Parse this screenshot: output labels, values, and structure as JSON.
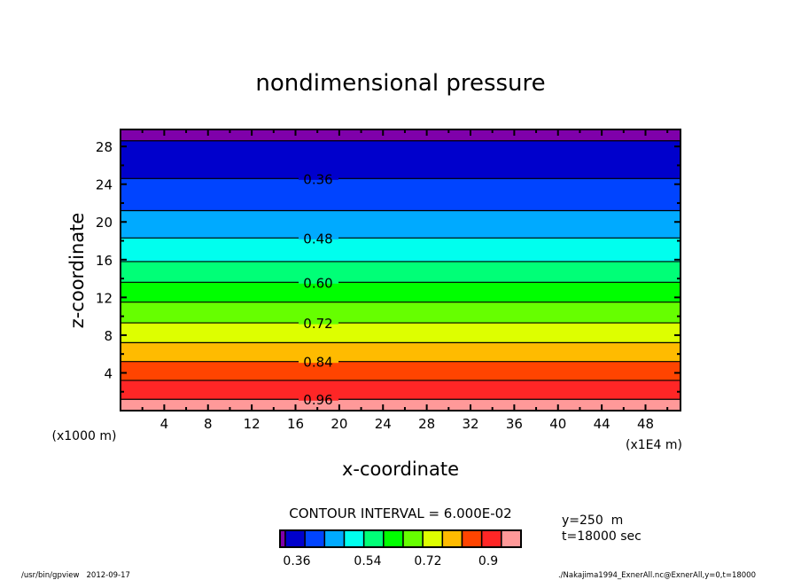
{
  "chart_data": {
    "type": "heatmap",
    "subtype": "filled-contour",
    "title": "nondimensional pressure",
    "xlabel": "x-coordinate",
    "ylabel": "z-coordinate",
    "x_unit_label": "(x1E4 m)",
    "y_unit_label": "(x1000 m)",
    "xlim": [
      0,
      51.2
    ],
    "ylim": [
      0,
      29.8
    ],
    "xticks": [
      "4",
      "8",
      "12",
      "16",
      "20",
      "24",
      "28",
      "32",
      "36",
      "40",
      "44",
      "48"
    ],
    "yticks": [
      "4",
      "8",
      "12",
      "16",
      "20",
      "24",
      "28"
    ],
    "bands": [
      {
        "z0": 0,
        "z1": 1.2,
        "color": "#ff9999"
      },
      {
        "z0": 1.2,
        "z1": 3.2,
        "color": "#ff2626"
      },
      {
        "z0": 3.2,
        "z1": 5.2,
        "color": "#ff4400"
      },
      {
        "z0": 5.2,
        "z1": 7.2,
        "color": "#ffbb00"
      },
      {
        "z0": 7.2,
        "z1": 9.3,
        "color": "#ddff00"
      },
      {
        "z0": 9.3,
        "z1": 11.5,
        "color": "#66ff00"
      },
      {
        "z0": 11.5,
        "z1": 13.6,
        "color": "#00ff00"
      },
      {
        "z0": 13.6,
        "z1": 15.8,
        "color": "#00ff77"
      },
      {
        "z0": 15.8,
        "z1": 18.3,
        "color": "#00ffee"
      },
      {
        "z0": 18.3,
        "z1": 21.2,
        "color": "#00aaff"
      },
      {
        "z0": 21.2,
        "z1": 24.6,
        "color": "#0044ff"
      },
      {
        "z0": 24.6,
        "z1": 28.6,
        "color": "#0000cc"
      },
      {
        "z0": 28.6,
        "z1": 29.8,
        "color": "#7f00aa"
      }
    ],
    "contour_labels": [
      {
        "value": "0.96",
        "z": 1.2
      },
      {
        "value": "0.84",
        "z": 5.2
      },
      {
        "value": "0.72",
        "z": 9.3
      },
      {
        "value": "0.60",
        "z": 13.6
      },
      {
        "value": "0.48",
        "z": 18.3
      },
      {
        "value": "0.36",
        "z": 24.6
      }
    ],
    "contour_interval_text": "CONTOUR INTERVAL = 6.000E-02",
    "colorbar": {
      "colors": [
        "#7f00aa",
        "#0000cc",
        "#0044ff",
        "#00aaff",
        "#00ffee",
        "#00ff77",
        "#00ff00",
        "#66ff00",
        "#ddff00",
        "#ffbb00",
        "#ff4400",
        "#ff2626",
        "#ff9999"
      ],
      "tick_labels": [
        "0.36",
        "0.54",
        "0.72",
        "0.9"
      ]
    }
  },
  "info": {
    "y_text": "y=250  m",
    "t_text": "t=18000 sec"
  },
  "footer": {
    "left": "/usr/bin/gpview   2012-09-17",
    "right": "./Nakajima1994_ExnerAll.nc@ExnerAll,y=0,t=18000"
  }
}
